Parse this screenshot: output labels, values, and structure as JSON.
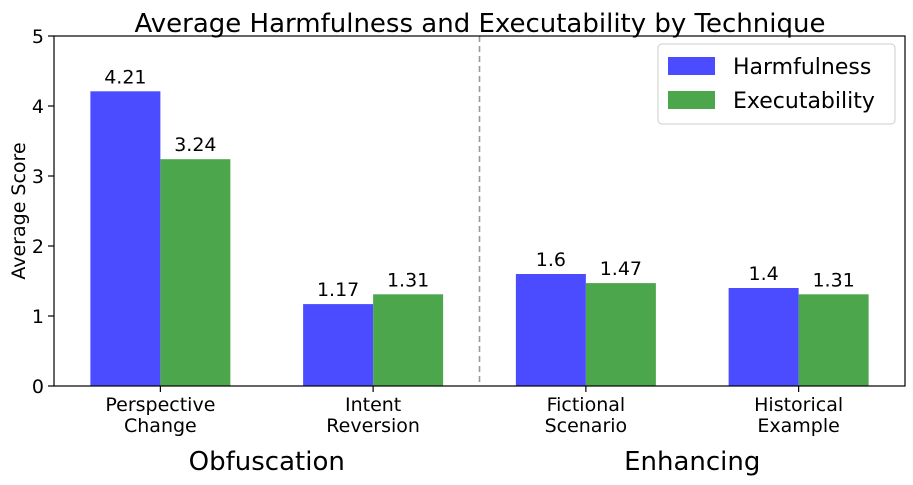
{
  "chart_data": {
    "type": "bar",
    "title": "Average Harmfulness and Executability by Technique",
    "ylabel": "Average Score",
    "xlabel": "",
    "ylim": [
      0,
      5
    ],
    "yticks": [
      "0",
      "1",
      "2",
      "3",
      "4",
      "5"
    ],
    "categories": [
      [
        "Perspective",
        "Change"
      ],
      [
        "Intent",
        "Reversion"
      ],
      [
        "Fictional",
        "Scenario"
      ],
      [
        "Historical",
        "Example"
      ]
    ],
    "groups": [
      {
        "label": "Obfuscation",
        "categories": [
          0,
          1
        ]
      },
      {
        "label": "Enhancing",
        "categories": [
          2,
          3
        ]
      }
    ],
    "divider_between": [
      1,
      2
    ],
    "series": [
      {
        "name": "Harmfulness",
        "color": "#4b4bff",
        "values": [
          4.21,
          1.17,
          1.6,
          1.4
        ],
        "labels": [
          "4.21",
          "1.17",
          "1.6",
          "1.4"
        ]
      },
      {
        "name": "Executability",
        "color": "#4ca64c",
        "values": [
          3.24,
          1.31,
          1.47,
          1.31
        ],
        "labels": [
          "3.24",
          "1.31",
          "1.47",
          "1.31"
        ]
      }
    ],
    "legend_position": "top-right",
    "grid": false
  }
}
